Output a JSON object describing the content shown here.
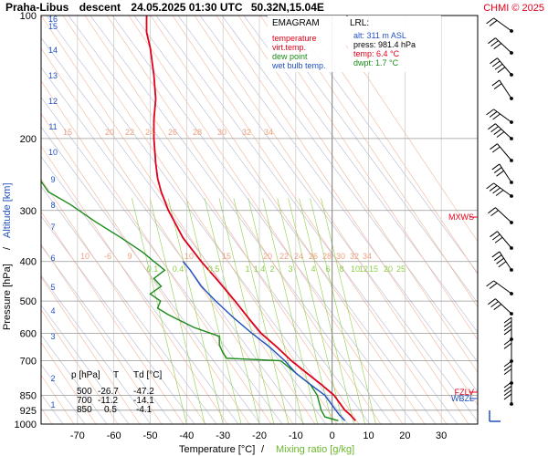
{
  "header": {
    "station": "Praha-Libus",
    "mode": "descent",
    "datetime": "24.05.2025 01:30 UTC",
    "coords": "50.32N,15.04E",
    "copyright": "CHMI © 2025"
  },
  "legend": {
    "title": "EMAGRAM",
    "items": [
      {
        "label": "temperature",
        "color": "#e0001a"
      },
      {
        "label": "virt.temp.",
        "color": "#e0001a"
      },
      {
        "label": "dew point",
        "color": "#1a8a1a"
      },
      {
        "label": "wet bulb temp.",
        "color": "#2050c0"
      }
    ]
  },
  "lrl": {
    "title": "LRL:",
    "alt": "alt: 311 m ASL",
    "press": "press: 981.4 hPa",
    "temp": "temp: 6.4 °C",
    "dwpt": "dwpt: 1.7 °C"
  },
  "summary_table": {
    "headers": [
      "p [hPa]",
      "T",
      "Td [°C]"
    ],
    "rows": [
      [
        "500",
        "-26.7",
        "-47.2"
      ],
      [
        "700",
        "-11.2",
        "-14.1"
      ],
      [
        "850",
        "0.5",
        "-4.1"
      ]
    ]
  },
  "level_markers": [
    {
      "label": "MXWS",
      "p": 318,
      "color": "#e0001a"
    },
    {
      "label": "FZLV",
      "p": 850,
      "color": "#e0001a"
    },
    {
      "label": "WBZL",
      "p": 870,
      "color": "#2050c0"
    }
  ],
  "mixing_ratio_labels_upper": [
    "15",
    "20",
    "22",
    "24",
    "26",
    "28",
    "30",
    "32",
    "34"
  ],
  "mixing_ratio_labels_middle": [
    "10",
    "-6",
    "9",
    "10",
    "15",
    "20",
    "22",
    "24",
    "26",
    "28",
    "30",
    "32",
    "34"
  ],
  "mixing_ratio_labels_lower": [
    "0.1",
    "0.4",
    "0.5",
    "1",
    "1.4",
    "2",
    "3",
    "4",
    "6",
    "8",
    "10",
    "12",
    "15",
    "20",
    "25"
  ],
  "chart_data": {
    "type": "line",
    "xlabel": "Temperature [°C]",
    "xlabel_sep": "/",
    "xlabel2": "Mixing ratio [g/kg]",
    "ylabel": "Pressure [hPa]",
    "ylabel_sep": "/",
    "ylabel2": "Altitude [km]",
    "xlim": [
      -80,
      40
    ],
    "ylim": [
      1000,
      100
    ],
    "x_ticks": [
      -70,
      -60,
      -50,
      -40,
      -30,
      -20,
      -10,
      0,
      10,
      20,
      30
    ],
    "p_ticks": [
      100,
      200,
      300,
      400,
      500,
      600,
      700,
      850,
      925,
      1000
    ],
    "km_ticks": [
      1,
      2,
      3,
      4,
      5,
      6,
      7,
      8,
      9,
      10,
      11,
      12,
      13,
      14,
      15,
      16
    ],
    "series": [
      {
        "name": "temperature",
        "color": "#e0001a",
        "points": [
          [
            6.4,
            981
          ],
          [
            5,
            950
          ],
          [
            3.5,
            925
          ],
          [
            0.5,
            850
          ],
          [
            -3,
            800
          ],
          [
            -7,
            750
          ],
          [
            -11.2,
            700
          ],
          [
            -15,
            650
          ],
          [
            -19.5,
            600
          ],
          [
            -23,
            550
          ],
          [
            -26.7,
            500
          ],
          [
            -31,
            450
          ],
          [
            -36,
            400
          ],
          [
            -41,
            350
          ],
          [
            -45,
            300
          ],
          [
            -47,
            270
          ],
          [
            -48,
            250
          ],
          [
            -48.5,
            230
          ],
          [
            -49,
            200
          ],
          [
            -49,
            180
          ],
          [
            -48.5,
            160
          ],
          [
            -49,
            140
          ],
          [
            -50,
            120
          ],
          [
            -51,
            110
          ],
          [
            -51,
            100
          ]
        ]
      },
      {
        "name": "dew point",
        "color": "#1a8a1a",
        "points": [
          [
            1.7,
            981
          ],
          [
            -2,
            960
          ],
          [
            -3,
            925
          ],
          [
            -4.1,
            850
          ],
          [
            -6,
            800
          ],
          [
            -10,
            750
          ],
          [
            -14.1,
            700
          ],
          [
            -29,
            690
          ],
          [
            -30,
            670
          ],
          [
            -31,
            640
          ],
          [
            -31,
            610
          ],
          [
            -38,
            580
          ],
          [
            -45,
            540
          ],
          [
            -48,
            520
          ],
          [
            -47.2,
            500
          ],
          [
            -50,
            480
          ],
          [
            -47,
            460
          ],
          [
            -49,
            440
          ],
          [
            -46,
            420
          ],
          [
            -49,
            400
          ],
          [
            -52,
            380
          ],
          [
            -58,
            350
          ],
          [
            -65,
            320
          ],
          [
            -72,
            290
          ],
          [
            -78,
            270
          ],
          [
            -82,
            240
          ],
          [
            -85,
            200
          ]
        ]
      },
      {
        "name": "wet bulb temp.",
        "color": "#2050c0",
        "points": [
          [
            3.5,
            981
          ],
          [
            2,
            950
          ],
          [
            1,
            925
          ],
          [
            -2,
            850
          ],
          [
            -6,
            800
          ],
          [
            -10,
            750
          ],
          [
            -13,
            700
          ],
          [
            -17,
            650
          ],
          [
            -22,
            600
          ],
          [
            -27,
            550
          ],
          [
            -32,
            500
          ],
          [
            -36,
            460
          ],
          [
            -39,
            420
          ],
          [
            -41,
            400
          ]
        ]
      }
    ]
  }
}
